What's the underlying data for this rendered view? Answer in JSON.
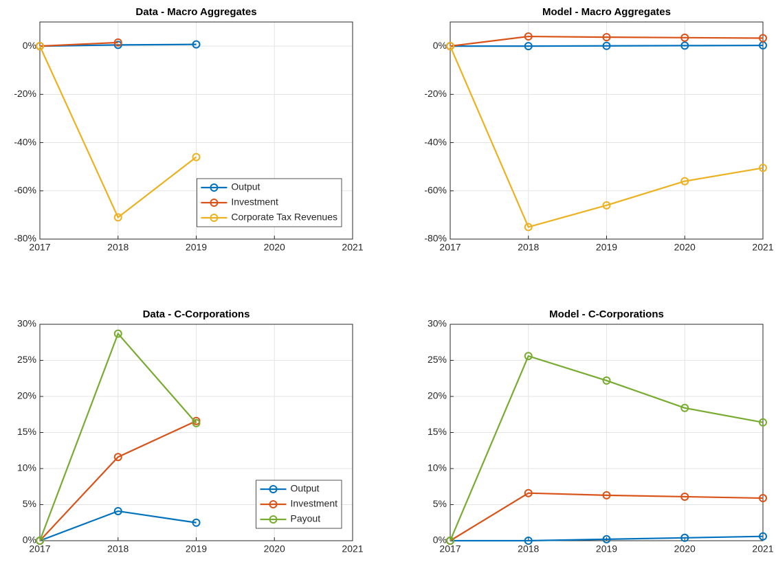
{
  "chart_data": [
    {
      "type": "line",
      "title": "Data - Macro Aggregates",
      "x": [
        2017,
        2018,
        2019,
        2020,
        2021
      ],
      "series": [
        {
          "name": "Output",
          "color": "#0072BD",
          "values": [
            0,
            0.5,
            0.7,
            null,
            null
          ]
        },
        {
          "name": "Investment",
          "color": "#D95319",
          "values": [
            0,
            1.5,
            null,
            null,
            null
          ]
        },
        {
          "name": "Corporate Tax Revenues",
          "color": "#EDB120",
          "values": [
            0,
            -71,
            -46,
            null,
            null
          ]
        }
      ],
      "xlim": [
        2017,
        2021
      ],
      "xticks": [
        2017,
        2018,
        2019,
        2020,
        2021
      ],
      "ylim": [
        -80,
        10
      ],
      "yticks": [
        {
          "value": -80,
          "label": "-80%"
        },
        {
          "value": -60,
          "label": "-60%"
        },
        {
          "value": -40,
          "label": "-40%"
        },
        {
          "value": -20,
          "label": "-20%"
        },
        {
          "value": 0,
          "label": "0%"
        }
      ],
      "grid": true,
      "legend": "lower right"
    },
    {
      "type": "line",
      "title": "Model - Macro Aggregates",
      "x": [
        2017,
        2018,
        2019,
        2020,
        2021
      ],
      "series": [
        {
          "name": "Output",
          "color": "#0072BD",
          "values": [
            0,
            0,
            0.1,
            0.2,
            0.3
          ]
        },
        {
          "name": "Investment",
          "color": "#D95319",
          "values": [
            0,
            4,
            3.7,
            3.5,
            3.3
          ]
        },
        {
          "name": "Corporate Tax Revenues",
          "color": "#EDB120",
          "values": [
            0,
            -75,
            -66,
            -56,
            -50.5
          ]
        }
      ],
      "xlim": [
        2017,
        2021
      ],
      "xticks": [
        2017,
        2018,
        2019,
        2020,
        2021
      ],
      "ylim": [
        -80,
        10
      ],
      "yticks": [
        {
          "value": -80,
          "label": "-80%"
        },
        {
          "value": -60,
          "label": "-60%"
        },
        {
          "value": -40,
          "label": "-40%"
        },
        {
          "value": -20,
          "label": "-20%"
        },
        {
          "value": 0,
          "label": "0%"
        }
      ],
      "grid": true
    },
    {
      "type": "line",
      "title": "Data - C-Corporations",
      "x": [
        2017,
        2018,
        2019,
        2020,
        2021
      ],
      "series": [
        {
          "name": "Output",
          "color": "#0072BD",
          "values": [
            0,
            4.1,
            2.5,
            null,
            null
          ]
        },
        {
          "name": "Investment",
          "color": "#D95319",
          "values": [
            0,
            11.6,
            16.6,
            null,
            null
          ]
        },
        {
          "name": "Payout",
          "color": "#77AC30",
          "values": [
            0,
            28.7,
            16.3,
            null,
            null
          ]
        }
      ],
      "xlim": [
        2017,
        2021
      ],
      "xticks": [
        2017,
        2018,
        2019,
        2020,
        2021
      ],
      "ylim": [
        0,
        30
      ],
      "yticks": [
        {
          "value": 0,
          "label": "0%"
        },
        {
          "value": 5,
          "label": "5%"
        },
        {
          "value": 10,
          "label": "10%"
        },
        {
          "value": 15,
          "label": "15%"
        },
        {
          "value": 20,
          "label": "20%"
        },
        {
          "value": 25,
          "label": "25%"
        },
        {
          "value": 30,
          "label": "30%"
        }
      ],
      "grid": true,
      "legend": "lower right"
    },
    {
      "type": "line",
      "title": "Model - C-Corporations",
      "x": [
        2017,
        2018,
        2019,
        2020,
        2021
      ],
      "series": [
        {
          "name": "Output",
          "color": "#0072BD",
          "values": [
            0,
            0,
            0.2,
            0.4,
            0.6
          ]
        },
        {
          "name": "Investment",
          "color": "#D95319",
          "values": [
            0,
            6.6,
            6.3,
            6.1,
            5.9
          ]
        },
        {
          "name": "Payout",
          "color": "#77AC30",
          "values": [
            0,
            25.6,
            22.2,
            18.4,
            16.4
          ]
        }
      ],
      "xlim": [
        2017,
        2021
      ],
      "xticks": [
        2017,
        2018,
        2019,
        2020,
        2021
      ],
      "ylim": [
        0,
        30
      ],
      "yticks": [
        {
          "value": 0,
          "label": "0%"
        },
        {
          "value": 5,
          "label": "5%"
        },
        {
          "value": 10,
          "label": "10%"
        },
        {
          "value": 15,
          "label": "15%"
        },
        {
          "value": 20,
          "label": "20%"
        },
        {
          "value": 25,
          "label": "25%"
        },
        {
          "value": 30,
          "label": "30%"
        }
      ],
      "grid": true
    }
  ]
}
